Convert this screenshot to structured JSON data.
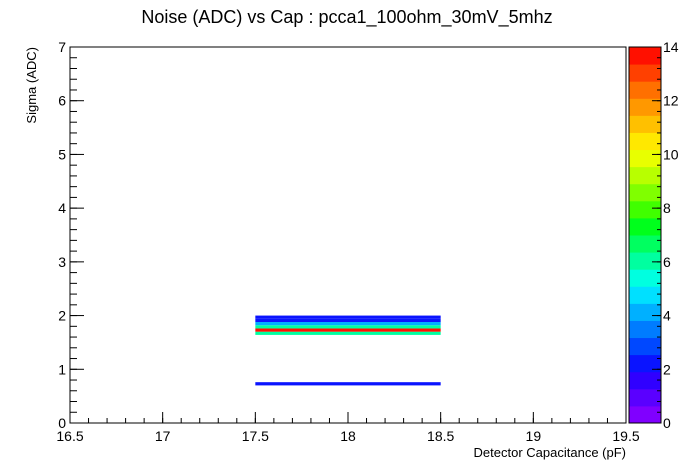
{
  "chart_data": {
    "type": "heatmap",
    "title": "Noise (ADC) vs Cap : pcca1_100ohm_30mV_5mhz",
    "xlabel": "Detector Capacitance (pF)",
    "ylabel": "Sigma (ADC)",
    "xlim": [
      16.5,
      19.5
    ],
    "ylim": [
      0,
      7
    ],
    "x_ticks": [
      "16.5",
      "17",
      "17.5",
      "18",
      "18.5",
      "19",
      "19.5"
    ],
    "y_ticks": [
      "0",
      "1",
      "2",
      "3",
      "4",
      "5",
      "6",
      "7"
    ],
    "colorbar": {
      "range": [
        0,
        14
      ],
      "ticks": [
        "0",
        "2",
        "4",
        "6",
        "8",
        "10",
        "12",
        "14"
      ],
      "colors": [
        "#8000ff",
        "#5a00ff",
        "#3000ff",
        "#0a14ff",
        "#0048ff",
        "#007cff",
        "#00b0ff",
        "#00e0ff",
        "#00ffe0",
        "#00ffa0",
        "#00ff60",
        "#00ff1c",
        "#40ff00",
        "#80ff00",
        "#b8ff00",
        "#e8ff00",
        "#ffe800",
        "#ffc000",
        "#ff9800",
        "#ff7000",
        "#ff4000",
        "#ff1000"
      ]
    },
    "cells": [
      {
        "x0": 17.5,
        "x1": 18.5,
        "y0": 0.7,
        "y1": 0.76,
        "value": 2
      },
      {
        "x0": 17.5,
        "x1": 18.5,
        "y0": 1.64,
        "y1": 1.7,
        "value": 6
      },
      {
        "x0": 17.5,
        "x1": 18.5,
        "y0": 1.7,
        "y1": 1.76,
        "value": 14
      },
      {
        "x0": 17.5,
        "x1": 18.5,
        "y0": 1.76,
        "y1": 1.82,
        "value": 6
      },
      {
        "x0": 17.5,
        "x1": 18.5,
        "y0": 1.82,
        "y1": 1.88,
        "value": 4
      },
      {
        "x0": 17.5,
        "x1": 18.5,
        "y0": 1.88,
        "y1": 1.94,
        "value": 2
      },
      {
        "x0": 17.5,
        "x1": 18.5,
        "y0": 1.94,
        "y1": 2.0,
        "value": 2
      }
    ]
  }
}
